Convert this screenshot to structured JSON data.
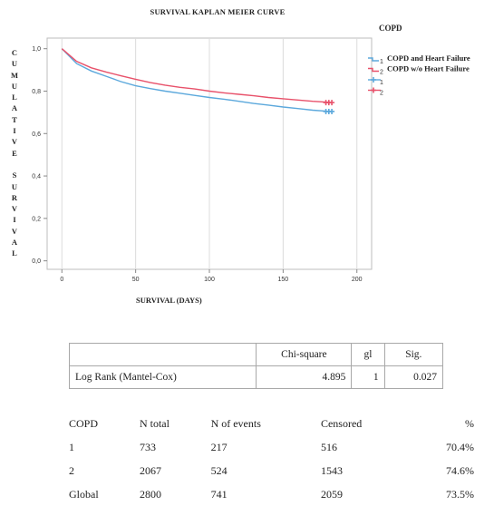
{
  "chart_data": {
    "type": "line",
    "title": "SURVIVAL KAPLAN MEIER CURVE",
    "xlabel": "SURVIVAL (DAYS)",
    "ylabel": "CUMULATIVE SURVIVAL",
    "xlim": [
      -10,
      210
    ],
    "ylim": [
      -0.04,
      1.05
    ],
    "x_ticks": [
      0,
      50,
      100,
      150,
      200
    ],
    "y_ticks": [
      0.0,
      0.2,
      0.4,
      0.6,
      0.8,
      1.0
    ],
    "x_tick_labels": [
      "0",
      "50",
      "100",
      "150",
      "200"
    ],
    "y_tick_labels": [
      "0,0",
      "0,2",
      "0,4",
      "0,6",
      "0,8",
      "1,0"
    ],
    "grid": "vertical",
    "legend": {
      "title": "COPD",
      "placement": "top-right",
      "entries": [
        {
          "key": "1",
          "label": "COPD and Heart Failure",
          "kind": "line",
          "color": "#5ba8dc"
        },
        {
          "key": "2",
          "label": "COPD w/o Heart Failure",
          "kind": "line",
          "color": "#e8516a"
        },
        {
          "key": "1",
          "label": "",
          "kind": "censor",
          "color": "#5ba8dc"
        },
        {
          "key": "2",
          "label": "",
          "kind": "censor",
          "color": "#e8516a"
        }
      ]
    },
    "series": [
      {
        "key": "1",
        "color": "#5ba8dc",
        "x": [
          0,
          5,
          10,
          20,
          30,
          40,
          50,
          60,
          70,
          80,
          90,
          100,
          110,
          120,
          130,
          140,
          150,
          160,
          170,
          180,
          183
        ],
        "y": [
          1.0,
          0.965,
          0.93,
          0.895,
          0.87,
          0.845,
          0.825,
          0.812,
          0.8,
          0.79,
          0.78,
          0.77,
          0.762,
          0.752,
          0.742,
          0.734,
          0.725,
          0.718,
          0.71,
          0.705,
          0.704
        ],
        "censor_x": [
          179,
          181,
          183
        ]
      },
      {
        "key": "2",
        "color": "#e8516a",
        "x": [
          0,
          5,
          10,
          20,
          30,
          40,
          50,
          60,
          70,
          80,
          90,
          100,
          110,
          120,
          130,
          140,
          150,
          160,
          170,
          180,
          183
        ],
        "y": [
          1.0,
          0.97,
          0.94,
          0.91,
          0.89,
          0.872,
          0.856,
          0.84,
          0.828,
          0.818,
          0.81,
          0.8,
          0.792,
          0.785,
          0.778,
          0.77,
          0.764,
          0.758,
          0.752,
          0.748,
          0.746
        ],
        "censor_x": [
          179,
          181,
          183
        ]
      }
    ]
  },
  "stats_table": {
    "headers": [
      "",
      "Chi-square",
      "gl",
      "Sig."
    ],
    "rows": [
      [
        "Log Rank (Mantel-Cox)",
        "4.895",
        "1",
        "0.027"
      ]
    ]
  },
  "summary_table": {
    "headers": [
      "COPD",
      "N total",
      "N of events",
      "Censored",
      "%"
    ],
    "rows": [
      [
        "1",
        "733",
        "217",
        "516",
        "70.4%"
      ],
      [
        "2",
        "2067",
        "524",
        "1543",
        "74.6%"
      ],
      [
        "Global",
        "2800",
        "741",
        "2059",
        "73.5%"
      ]
    ]
  }
}
